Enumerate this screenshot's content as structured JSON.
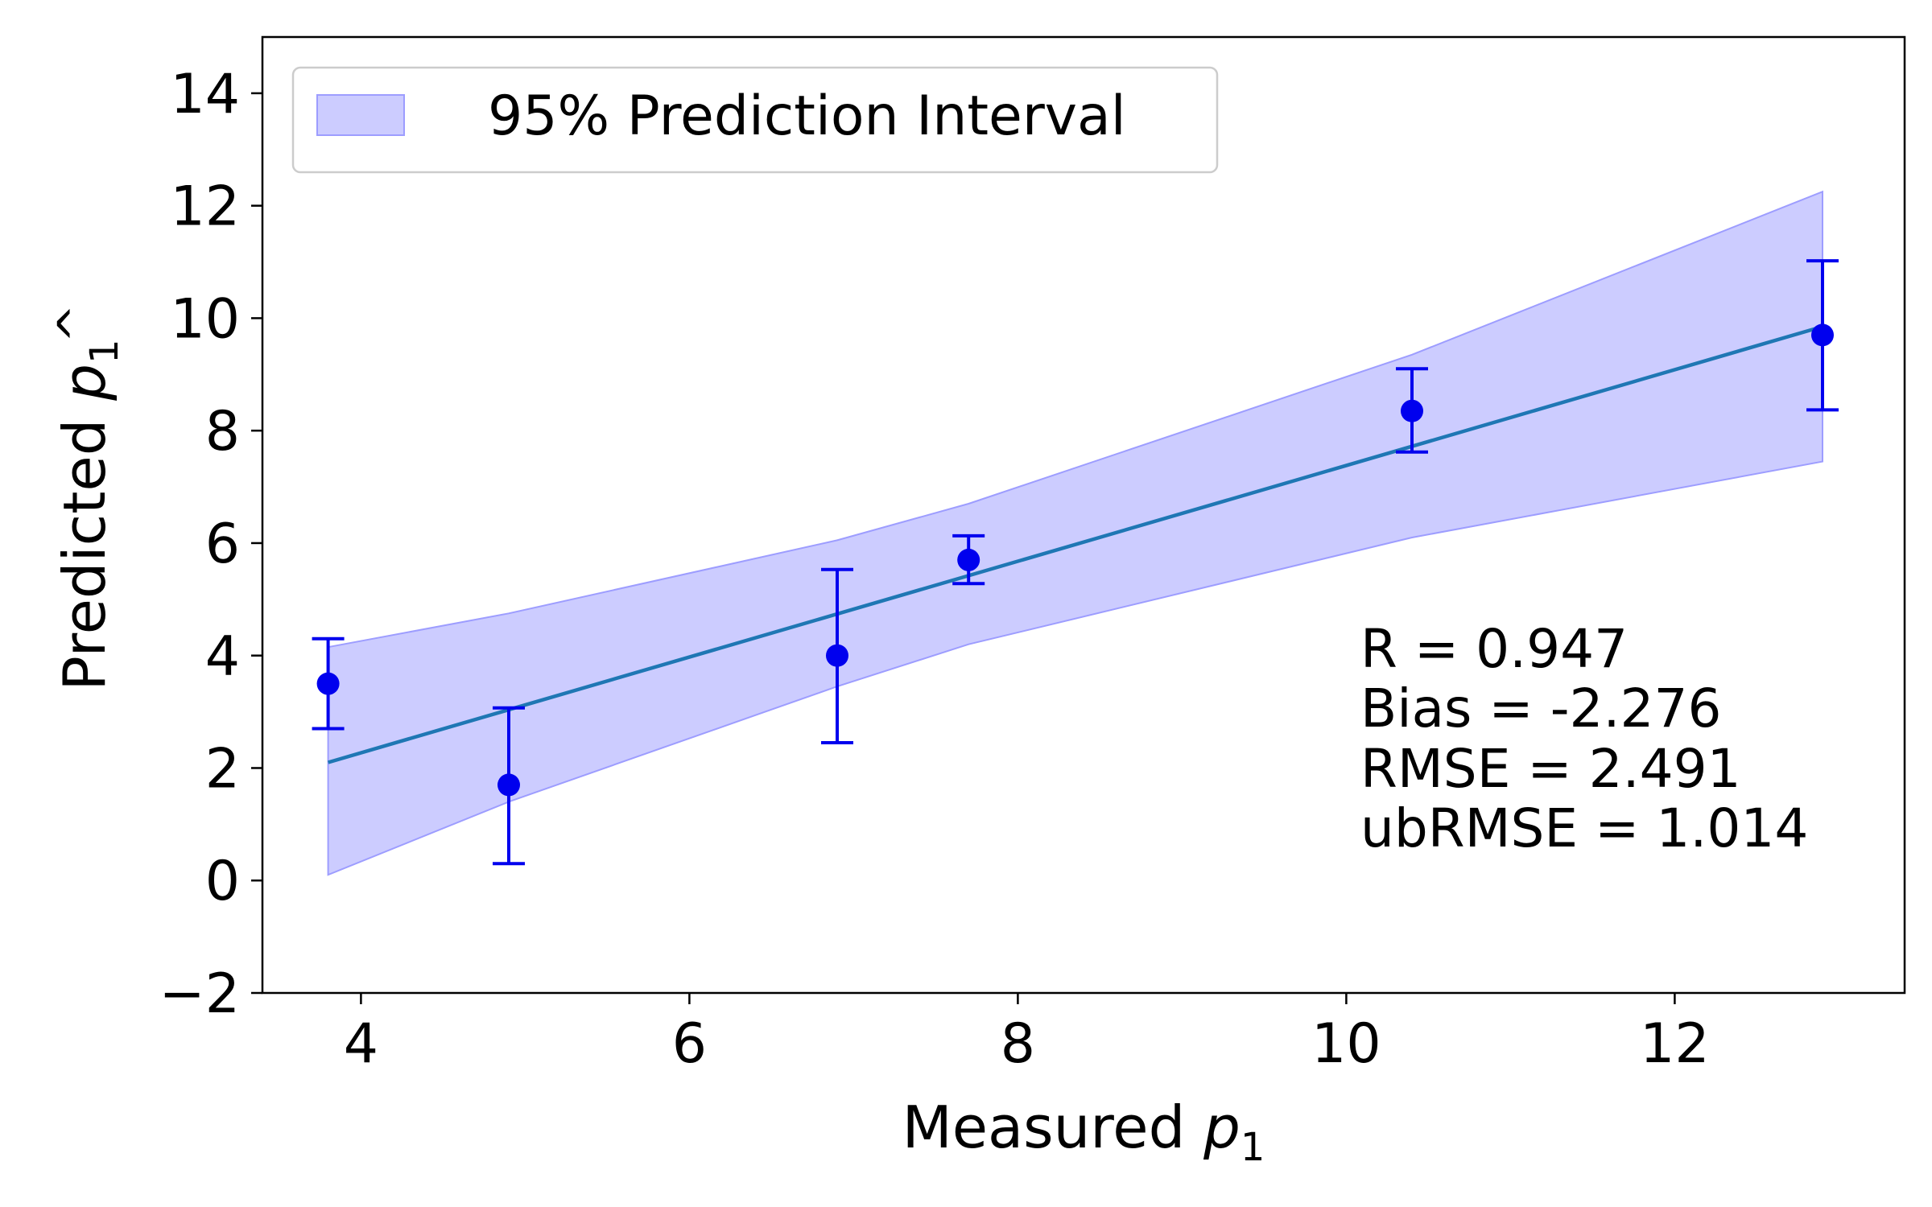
{
  "chart_data": {
    "type": "scatter",
    "title": "",
    "xlabel": "Measured p1",
    "ylabel": "Predicted p̂1",
    "xlabel_parts": {
      "text": "Measured ",
      "var": "p",
      "sub": "1"
    },
    "ylabel_parts": {
      "text": "Predicted ",
      "var": "p",
      "hat": "^",
      "sub": "1"
    },
    "xlim": [
      3.4,
      13.4
    ],
    "ylim": [
      -2,
      15
    ],
    "xticks": [
      4,
      6,
      8,
      10,
      12
    ],
    "xtick_labels": [
      "4",
      "6",
      "8",
      "10",
      "12"
    ],
    "yticks": [
      -2,
      0,
      2,
      4,
      6,
      8,
      10,
      12,
      14
    ],
    "ytick_labels": [
      "−2",
      "0",
      "2",
      "4",
      "6",
      "8",
      "10",
      "12",
      "14"
    ],
    "grid": false,
    "points": [
      {
        "x": 3.8,
        "y": 3.5,
        "lower": 2.7,
        "upper": 4.3
      },
      {
        "x": 4.9,
        "y": 1.7,
        "lower": 0.3,
        "upper": 3.07
      },
      {
        "x": 6.9,
        "y": 4.0,
        "lower": 2.45,
        "upper": 5.53
      },
      {
        "x": 7.7,
        "y": 5.7,
        "lower": 5.28,
        "upper": 6.13
      },
      {
        "x": 10.4,
        "y": 8.35,
        "lower": 7.62,
        "upper": 9.1
      },
      {
        "x": 12.9,
        "y": 9.7,
        "lower": 8.37,
        "upper": 11.02
      }
    ],
    "fit_line": {
      "x": [
        3.8,
        12.9
      ],
      "y": [
        2.1,
        9.85
      ]
    },
    "prediction_interval": {
      "x": [
        3.8,
        4.9,
        6.9,
        7.7,
        10.4,
        12.9
      ],
      "lower": [
        0.1,
        1.4,
        3.45,
        4.2,
        6.1,
        7.45
      ],
      "upper": [
        4.15,
        4.75,
        6.05,
        6.7,
        9.35,
        12.25
      ]
    },
    "legend": {
      "label": "95% Prediction Interval",
      "placement": "upper-left"
    },
    "annotations": [
      "R = 0.947",
      "Bias = -2.276",
      "RMSE = 2.491",
      "ubRMSE = 1.014"
    ],
    "colors": {
      "point": "#0000ee",
      "fit_line": "#1f77b4",
      "interval_fill": "#ccccff",
      "interval_edge": "#9d9dff"
    }
  }
}
